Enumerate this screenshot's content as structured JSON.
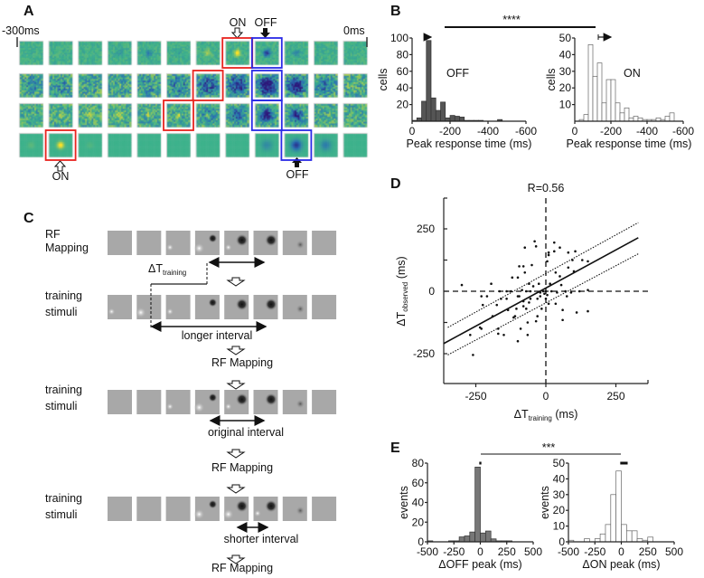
{
  "panels": {
    "a": "A",
    "b": "B",
    "c": "C",
    "d": "D",
    "e": "E"
  },
  "panel_a": {
    "start_label": "-300ms",
    "end_label": "0ms",
    "on_label_top": "ON",
    "off_label_top": "OFF",
    "on_label_bottom": "ON",
    "off_label_bottom": "OFF",
    "highlight_colors": {
      "on": "#e8231f",
      "off": "#2a2ae6"
    },
    "rows": [
      {
        "on_highlight": 7,
        "off_highlight": 8
      },
      {
        "on_highlight": 6,
        "off_highlight": 8
      },
      {
        "on_highlight": 5,
        "off_highlight": 8
      },
      {
        "on_highlight": 1,
        "off_highlight": 9
      }
    ]
  },
  "panel_c": {
    "rows": [
      {
        "label1": "RF",
        "label2": "Mapping"
      },
      {
        "label1": "training",
        "label2": "stimuli"
      },
      {
        "label1": "training",
        "label2": "stimuli"
      },
      {
        "label1": "training",
        "label2": "stimuli"
      }
    ],
    "delta_t": "ΔT",
    "delta_t_sub": "training",
    "longer": "longer interval",
    "original": "original interval",
    "shorter": "shorter interval",
    "rf_mapping": "RF Mapping"
  },
  "chart_data": [
    {
      "id": "B-off",
      "type": "bar",
      "title": "OFF",
      "xlabel": "Peak response time (ms)",
      "ylabel": "cells",
      "xlim": [
        0,
        -600
      ],
      "ylim": [
        0,
        100
      ],
      "bin_width": 25,
      "xticks": [
        "0",
        "-200",
        "-400",
        "-600"
      ],
      "yticks": [
        "20",
        "40",
        "60",
        "80",
        "100"
      ],
      "bins": [
        {
          "start": 0,
          "count": 1
        },
        {
          "start": -25,
          "count": 4
        },
        {
          "start": -50,
          "count": 24
        },
        {
          "start": -75,
          "count": 97
        },
        {
          "start": -100,
          "count": 28
        },
        {
          "start": -125,
          "count": 13
        },
        {
          "start": -150,
          "count": 23
        },
        {
          "start": -175,
          "count": 4
        },
        {
          "start": -200,
          "count": 7
        },
        {
          "start": -225,
          "count": 6
        },
        {
          "start": -250,
          "count": 5
        },
        {
          "start": -275,
          "count": 1
        },
        {
          "start": -300,
          "count": 1
        },
        {
          "start": -325,
          "count": 1
        },
        {
          "start": -350,
          "count": 1
        },
        {
          "start": -450,
          "count": 2
        }
      ],
      "mean_arrow": [
        -100,
        -65
      ],
      "color": "#555555"
    },
    {
      "id": "B-on",
      "type": "bar",
      "title": "ON",
      "xlabel": "Peak response time (ms)",
      "ylabel": "cells",
      "xlim": [
        0,
        -600
      ],
      "ylim": [
        0,
        50
      ],
      "bin_width": 25,
      "xticks": [
        "0",
        "-200",
        "-400",
        "-600"
      ],
      "yticks": [
        "10",
        "20",
        "30",
        "40",
        "50"
      ],
      "bins": [
        {
          "start": -25,
          "count": 1
        },
        {
          "start": -50,
          "count": 4
        },
        {
          "start": -75,
          "count": 46
        },
        {
          "start": -100,
          "count": 27
        },
        {
          "start": -125,
          "count": 35
        },
        {
          "start": -150,
          "count": 11
        },
        {
          "start": -175,
          "count": 25
        },
        {
          "start": -200,
          "count": 25
        },
        {
          "start": -225,
          "count": 11
        },
        {
          "start": -250,
          "count": 5
        },
        {
          "start": -275,
          "count": 8
        },
        {
          "start": -300,
          "count": 2
        },
        {
          "start": -325,
          "count": 3
        },
        {
          "start": -350,
          "count": 2
        },
        {
          "start": -375,
          "count": 1
        },
        {
          "start": -400,
          "count": 1
        },
        {
          "start": -425,
          "count": 1
        },
        {
          "start": -450,
          "count": 2
        },
        {
          "start": -475,
          "count": 1
        },
        {
          "start": -500,
          "count": 3
        },
        {
          "start": -525,
          "count": 5
        }
      ],
      "mean_arrow": [
        -200,
        -130
      ],
      "color": "#ffffff"
    },
    {
      "id": "D",
      "type": "scatter",
      "title": "R=0.56",
      "xlabel": "ΔT",
      "xlabel_sub": "training",
      "xlabel_unit": " (ms)",
      "ylabel": "ΔT",
      "ylabel_sub": "observed",
      "ylabel_unit": " (ms)",
      "xlim": [
        -365,
        365
      ],
      "ylim": [
        -370,
        373
      ],
      "xticks": [
        {
          "v": -250,
          "label": "-250"
        },
        {
          "v": 0,
          "label": "0"
        },
        {
          "v": 250,
          "label": "250"
        }
      ],
      "yticks": [
        {
          "v": 250,
          "label": "250"
        },
        {
          "v": 125,
          "label": ""
        },
        {
          "v": 0,
          "label": "0"
        },
        {
          "v": -125,
          "label": ""
        },
        {
          "v": -250,
          "label": "-250"
        }
      ],
      "fit": {
        "slope": 0.61,
        "intercept": 13
      },
      "ci_upper": [
        [
          -350,
          -145
        ],
        [
          330,
          275
        ]
      ],
      "ci_lower": [
        [
          -350,
          -255
        ],
        [
          330,
          150
        ]
      ],
      "points": [
        [
          -300,
          25
        ],
        [
          -270,
          -175
        ],
        [
          -260,
          -255
        ],
        [
          -235,
          -145
        ],
        [
          -230,
          -150
        ],
        [
          -230,
          -20
        ],
        [
          -225,
          -55
        ],
        [
          -210,
          -20
        ],
        [
          -195,
          30
        ],
        [
          -190,
          -100
        ],
        [
          -175,
          -55
        ],
        [
          -170,
          -150
        ],
        [
          -170,
          -170
        ],
        [
          -165,
          0
        ],
        [
          -160,
          -30
        ],
        [
          -150,
          -175
        ],
        [
          -140,
          -30
        ],
        [
          -135,
          -75
        ],
        [
          -125,
          0
        ],
        [
          -120,
          55
        ],
        [
          -115,
          -105
        ],
        [
          -110,
          -100
        ],
        [
          -105,
          -70
        ],
        [
          -100,
          -200
        ],
        [
          -100,
          55
        ],
        [
          -95,
          100
        ],
        [
          -95,
          -20
        ],
        [
          -90,
          -150
        ],
        [
          -85,
          5
        ],
        [
          -80,
          -60
        ],
        [
          -80,
          -40
        ],
        [
          -80,
          100
        ],
        [
          -75,
          75
        ],
        [
          -75,
          175
        ],
        [
          -70,
          -70
        ],
        [
          -70,
          0
        ],
        [
          -65,
          -125
        ],
        [
          -65,
          -175
        ],
        [
          -60,
          -45
        ],
        [
          -55,
          -30
        ],
        [
          -55,
          0
        ],
        [
          -50,
          105
        ],
        [
          -45,
          20
        ],
        [
          -40,
          200
        ],
        [
          -35,
          180
        ],
        [
          -35,
          -120
        ],
        [
          -30,
          -30
        ],
        [
          -30,
          -100
        ],
        [
          -25,
          30
        ],
        [
          -20,
          -20
        ],
        [
          -15,
          -70
        ],
        [
          -10,
          0
        ],
        [
          -5,
          -10
        ],
        [
          0,
          0
        ],
        [
          0,
          -30
        ],
        [
          5,
          120
        ],
        [
          5,
          -15
        ],
        [
          10,
          145
        ],
        [
          10,
          155
        ],
        [
          10,
          -50
        ],
        [
          15,
          30
        ],
        [
          20,
          0
        ],
        [
          30,
          160
        ],
        [
          30,
          195
        ],
        [
          35,
          75
        ],
        [
          35,
          -50
        ],
        [
          50,
          175
        ],
        [
          50,
          60
        ],
        [
          55,
          25
        ],
        [
          60,
          -115
        ],
        [
          60,
          -75
        ],
        [
          70,
          0
        ],
        [
          75,
          -20
        ],
        [
          80,
          155
        ],
        [
          80,
          95
        ],
        [
          90,
          -5
        ],
        [
          95,
          125
        ],
        [
          100,
          80
        ],
        [
          105,
          160
        ],
        [
          110,
          -85
        ],
        [
          120,
          0
        ],
        [
          130,
          125
        ],
        [
          150,
          -80
        ],
        [
          150,
          5
        ],
        [
          150,
          120
        ],
        [
          -140,
          0
        ],
        [
          -100,
          -20
        ],
        [
          -60,
          30
        ],
        [
          -20,
          -5
        ],
        [
          40,
          -5
        ]
      ]
    },
    {
      "id": "E-off",
      "type": "bar",
      "xlabel": "ΔOFF peak (ms)",
      "ylabel": "events",
      "xlim": [
        -500,
        500
      ],
      "ylim": [
        0,
        80
      ],
      "bin_width": 50,
      "xticks": [
        "-500",
        "-250",
        "0",
        "250",
        "500"
      ],
      "yticks": [
        "0",
        "20",
        "40",
        "60",
        "80"
      ],
      "bins": [
        {
          "start": -500,
          "count": 1
        },
        {
          "start": -300,
          "count": 1
        },
        {
          "start": -250,
          "count": 1
        },
        {
          "start": -200,
          "count": 5
        },
        {
          "start": -150,
          "count": 6
        },
        {
          "start": -100,
          "count": 10
        },
        {
          "start": -50,
          "count": 76
        },
        {
          "start": 0,
          "count": 9
        },
        {
          "start": 50,
          "count": 11
        },
        {
          "start": 100,
          "count": 3
        },
        {
          "start": 150,
          "count": 1
        },
        {
          "start": 200,
          "count": 1
        },
        {
          "start": 250,
          "count": 1
        }
      ],
      "mean_bar": [
        -10,
        10
      ],
      "color": "#777777"
    },
    {
      "id": "E-on",
      "type": "bar",
      "xlabel": "ΔON peak (ms)",
      "ylabel": "events",
      "xlim": [
        -500,
        500
      ],
      "ylim": [
        0,
        50
      ],
      "bin_width": 50,
      "xticks": [
        "-500",
        "-250",
        "0",
        "250",
        "500"
      ],
      "yticks": [
        "0",
        "10",
        "20",
        "30",
        "40",
        "50"
      ],
      "bins": [
        {
          "start": -500,
          "count": 1
        },
        {
          "start": -350,
          "count": 2
        },
        {
          "start": -250,
          "count": 2
        },
        {
          "start": -200,
          "count": 5
        },
        {
          "start": -150,
          "count": 11
        },
        {
          "start": -100,
          "count": 30
        },
        {
          "start": -50,
          "count": 45
        },
        {
          "start": 0,
          "count": 11
        },
        {
          "start": 50,
          "count": 7
        },
        {
          "start": 100,
          "count": 7
        },
        {
          "start": 150,
          "count": 2
        },
        {
          "start": 200,
          "count": 1
        },
        {
          "start": 250,
          "count": 3
        }
      ],
      "mean_bar": [
        -10,
        60
      ],
      "color": "#ffffff"
    }
  ],
  "significance": {
    "b": "****",
    "e": "***"
  }
}
